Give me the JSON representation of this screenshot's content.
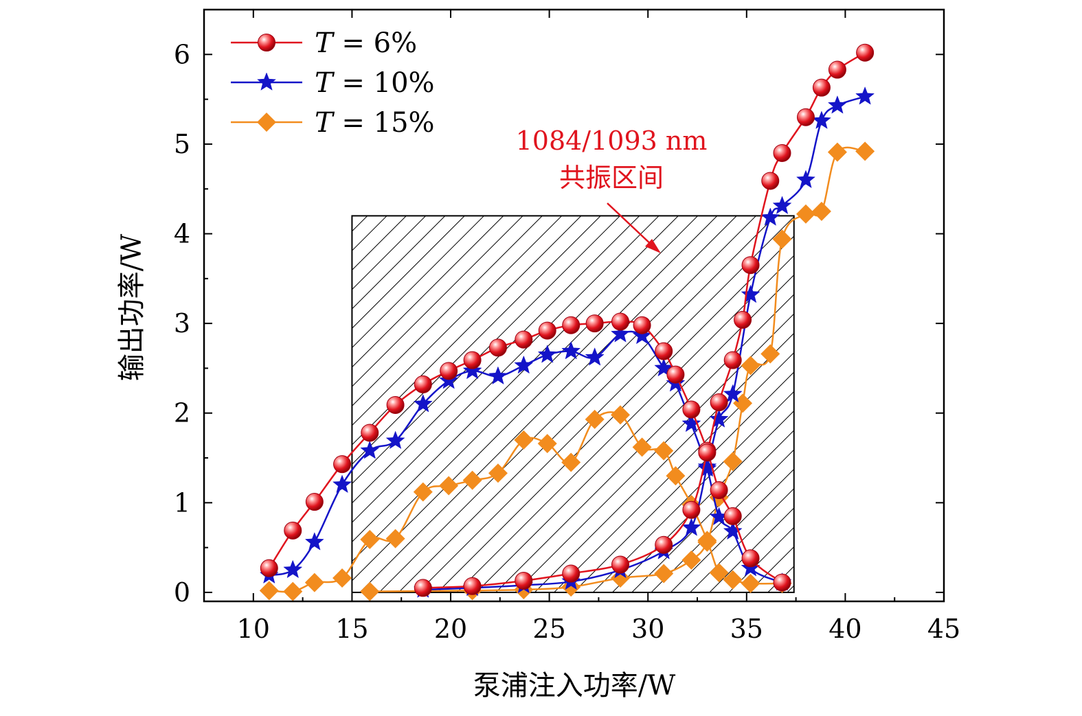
{
  "chart_data": {
    "type": "line",
    "title": "",
    "xlabel": "泵浦注入功率/W",
    "ylabel": "输出功率/W",
    "xlim": [
      7.5,
      45
    ],
    "ylim": [
      -0.1,
      6.5
    ],
    "xticks": [
      10,
      15,
      20,
      25,
      30,
      35,
      40,
      45
    ],
    "yticks": [
      0,
      1,
      2,
      3,
      4,
      5,
      6
    ],
    "grid": false,
    "legend_position": "top-left",
    "shaded_region": {
      "x": [
        15,
        37.4
      ],
      "y": [
        0,
        4.2
      ],
      "pattern": "diagonal-hatch",
      "label_line1": "1084/1093 nm",
      "label_line2": "共振区间",
      "label_color": "#e0141e"
    },
    "series": [
      {
        "name": "T = 6%",
        "legend_italic": "T",
        "legend_rest": " = 6%",
        "color": "#e0141e",
        "marker": "sphere",
        "branches": [
          {
            "x": [
              10.8,
              12.0,
              13.1,
              14.5,
              15.9,
              17.2,
              18.6,
              19.9,
              21.1,
              22.4,
              23.7,
              24.9,
              26.1,
              27.3,
              28.6,
              29.7,
              30.8,
              31.4,
              32.2,
              33.0,
              33.6,
              34.3,
              35.2,
              36.8
            ],
            "y": [
              0.27,
              0.69,
              1.01,
              1.43,
              1.78,
              2.09,
              2.32,
              2.47,
              2.59,
              2.73,
              2.82,
              2.92,
              2.98,
              3.0,
              3.02,
              2.98,
              2.69,
              2.43,
              2.04,
              1.58,
              1.14,
              0.85,
              0.38,
              0.11
            ]
          },
          {
            "x": [
              18.6,
              21.1,
              23.7,
              26.1,
              28.6,
              30.8,
              32.2,
              33.0,
              33.6,
              34.3,
              34.8,
              35.2,
              36.2,
              36.8,
              38.0,
              38.8,
              39.6,
              41.0
            ],
            "y": [
              0.05,
              0.07,
              0.13,
              0.21,
              0.31,
              0.53,
              0.92,
              1.56,
              2.12,
              2.59,
              3.04,
              3.65,
              4.59,
              4.9,
              5.3,
              5.63,
              5.83,
              6.02
            ]
          }
        ]
      },
      {
        "name": "T = 10%",
        "legend_italic": "T",
        "legend_rest": " = 10%",
        "color": "#1414c8",
        "marker": "star",
        "branches": [
          {
            "x": [
              10.8,
              12.0,
              13.1,
              14.5,
              15.9,
              17.2,
              18.6,
              19.9,
              21.1,
              22.4,
              23.7,
              24.9,
              26.1,
              27.3,
              28.6,
              29.7,
              30.8,
              31.4,
              32.2,
              33.0,
              33.6,
              34.3,
              35.2,
              36.8
            ],
            "y": [
              0.19,
              0.25,
              0.56,
              1.2,
              1.58,
              1.69,
              2.1,
              2.36,
              2.47,
              2.41,
              2.53,
              2.65,
              2.69,
              2.62,
              2.88,
              2.86,
              2.5,
              2.33,
              1.88,
              1.38,
              0.84,
              0.68,
              0.27,
              0.11
            ]
          },
          {
            "x": [
              18.6,
              21.1,
              23.7,
              26.1,
              28.6,
              30.8,
              32.2,
              33.0,
              33.6,
              34.3,
              35.2,
              36.2,
              36.8,
              38.0,
              38.8,
              39.6,
              41.0
            ],
            "y": [
              0.03,
              0.05,
              0.08,
              0.12,
              0.25,
              0.46,
              0.72,
              1.4,
              1.93,
              2.21,
              3.32,
              4.18,
              4.31,
              4.6,
              5.26,
              5.43,
              5.53
            ]
          }
        ]
      },
      {
        "name": "T = 15%",
        "legend_italic": "T",
        "legend_rest": " = 15%",
        "color": "#f28c1e",
        "marker": "diamond",
        "branches": [
          {
            "x": [
              10.8,
              12.0,
              13.1,
              14.5,
              15.9,
              17.2,
              18.6,
              19.9,
              21.1,
              22.4,
              23.7,
              24.9,
              26.1,
              27.3,
              28.6,
              29.7,
              30.8,
              31.4,
              32.2,
              33.0,
              33.6,
              34.3,
              35.2,
              36.8
            ],
            "y": [
              0.02,
              0.01,
              0.11,
              0.16,
              0.59,
              0.6,
              1.12,
              1.19,
              1.25,
              1.33,
              1.7,
              1.66,
              1.45,
              1.93,
              1.98,
              1.62,
              1.58,
              1.3,
              0.98,
              0.58,
              0.22,
              0.14,
              0.1,
              0.1
            ]
          },
          {
            "x": [
              15.9,
              21.1,
              23.7,
              26.1,
              28.6,
              30.8,
              32.2,
              33.0,
              33.6,
              34.3,
              34.8,
              35.2,
              36.2,
              36.8,
              38.0,
              38.8,
              39.6,
              41.0
            ],
            "y": [
              0.01,
              0.02,
              0.03,
              0.06,
              0.16,
              0.21,
              0.36,
              0.56,
              1.06,
              1.46,
              2.11,
              2.53,
              2.66,
              3.94,
              4.22,
              4.25,
              4.91,
              4.92
            ]
          }
        ]
      }
    ]
  }
}
